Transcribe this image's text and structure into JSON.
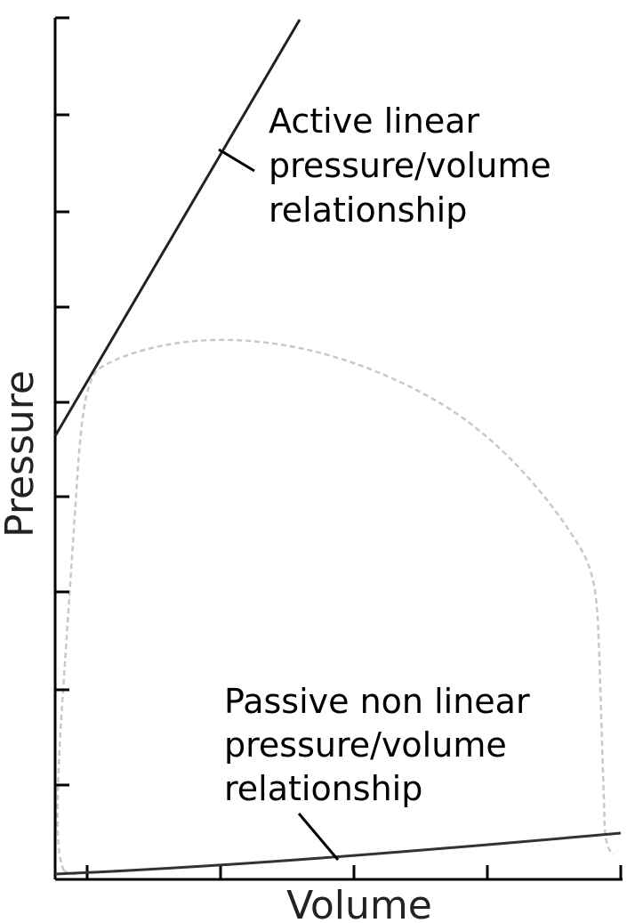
{
  "diagram": {
    "axis_labels": {
      "y": "Pressure",
      "x": "Volume"
    },
    "annotations": {
      "active": [
        "Active linear",
        "pressure/volume",
        "relationship"
      ],
      "passive": [
        "Passive non linear",
        "pressure/volume",
        "relationship"
      ]
    },
    "colors": {
      "axis": "#000000",
      "relationship_lines": "#222222",
      "pv_loop": "#c8c8c8"
    }
  }
}
